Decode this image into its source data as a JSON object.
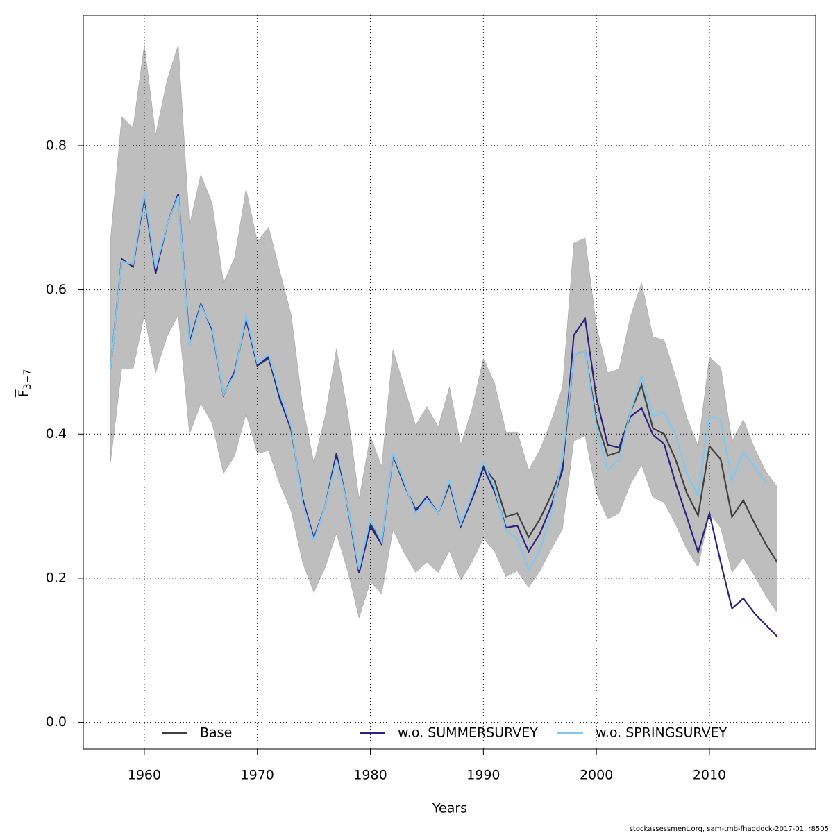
{
  "chart_data": {
    "type": "line",
    "xlabel": "Years",
    "ylabel": {
      "base": "F",
      "subscript": "3−7"
    },
    "footer": "stockassessment.org, sam-tmb-fhaddock-2017-01, r8505",
    "x": [
      1957,
      1958,
      1959,
      1960,
      1961,
      1962,
      1963,
      1964,
      1965,
      1966,
      1967,
      1968,
      1969,
      1970,
      1971,
      1972,
      1973,
      1974,
      1975,
      1976,
      1977,
      1978,
      1979,
      1980,
      1981,
      1982,
      1983,
      1984,
      1985,
      1986,
      1987,
      1988,
      1989,
      1990,
      1991,
      1992,
      1993,
      1994,
      1995,
      1996,
      1997,
      1998,
      1999,
      2000,
      2001,
      2002,
      2003,
      2004,
      2005,
      2006,
      2007,
      2008,
      2009,
      2010,
      2011,
      2012,
      2013,
      2014,
      2015,
      2016
    ],
    "band": {
      "color": "#bebebe",
      "upper": [
        0.67,
        0.84,
        0.825,
        0.94,
        0.815,
        0.89,
        0.94,
        0.69,
        0.76,
        0.72,
        0.61,
        0.645,
        0.74,
        0.667,
        0.687,
        0.625,
        0.565,
        0.44,
        0.36,
        0.425,
        0.518,
        0.43,
        0.31,
        0.397,
        0.355,
        0.517,
        0.465,
        0.412,
        0.438,
        0.41,
        0.465,
        0.385,
        0.435,
        0.505,
        0.47,
        0.403,
        0.403,
        0.35,
        0.378,
        0.418,
        0.465,
        0.665,
        0.672,
        0.55,
        0.485,
        0.49,
        0.562,
        0.61,
        0.535,
        0.53,
        0.48,
        0.423,
        0.383,
        0.507,
        0.493,
        0.39,
        0.42,
        0.38,
        0.348,
        0.327
      ],
      "lower": [
        0.36,
        0.49,
        0.49,
        0.565,
        0.485,
        0.535,
        0.565,
        0.4,
        0.442,
        0.415,
        0.345,
        0.37,
        0.428,
        0.373,
        0.377,
        0.33,
        0.293,
        0.222,
        0.18,
        0.215,
        0.262,
        0.21,
        0.145,
        0.195,
        0.178,
        0.267,
        0.235,
        0.208,
        0.222,
        0.208,
        0.238,
        0.197,
        0.223,
        0.255,
        0.237,
        0.202,
        0.21,
        0.187,
        0.21,
        0.24,
        0.268,
        0.39,
        0.398,
        0.318,
        0.282,
        0.29,
        0.33,
        0.357,
        0.312,
        0.305,
        0.275,
        0.24,
        0.215,
        0.29,
        0.27,
        0.208,
        0.228,
        0.203,
        0.175,
        0.152
      ]
    },
    "series": [
      {
        "name": "Base",
        "color": "#404040",
        "values": [
          0.49,
          0.64,
          0.635,
          0.73,
          0.625,
          0.69,
          0.73,
          0.525,
          0.58,
          0.545,
          0.455,
          0.485,
          0.56,
          0.495,
          0.505,
          0.45,
          0.405,
          0.31,
          0.255,
          0.3,
          0.37,
          0.3,
          0.21,
          0.275,
          0.25,
          0.37,
          0.33,
          0.295,
          0.31,
          0.29,
          0.33,
          0.275,
          0.31,
          0.355,
          0.335,
          0.285,
          0.29,
          0.257,
          0.282,
          0.315,
          0.355,
          0.51,
          0.515,
          0.42,
          0.37,
          0.375,
          0.43,
          0.468,
          0.408,
          0.4,
          0.365,
          0.318,
          0.287,
          0.383,
          0.365,
          0.285,
          0.308,
          0.276,
          0.247,
          0.222
        ]
      },
      {
        "name": "w.o. SUMMERSURVEY",
        "color": "#2b2280",
        "values": [
          0.49,
          0.643,
          0.632,
          0.73,
          0.623,
          0.69,
          0.733,
          0.527,
          0.58,
          0.545,
          0.454,
          0.487,
          0.56,
          0.495,
          0.507,
          0.448,
          0.407,
          0.31,
          0.255,
          0.3,
          0.373,
          0.298,
          0.207,
          0.272,
          0.247,
          0.372,
          0.33,
          0.293,
          0.313,
          0.29,
          0.333,
          0.272,
          0.31,
          0.353,
          0.32,
          0.27,
          0.273,
          0.237,
          0.262,
          0.3,
          0.35,
          0.537,
          0.56,
          0.45,
          0.385,
          0.381,
          0.424,
          0.436,
          0.399,
          0.386,
          0.332,
          0.285,
          0.236,
          0.29,
          0.222,
          0.158,
          0.172,
          0.151,
          0.135,
          0.119
        ]
      },
      {
        "name": "w.o. SPRINGSURVEY",
        "color": "#7fc8f0",
        "values": [
          0.49,
          0.64,
          0.635,
          0.735,
          0.63,
          0.69,
          0.73,
          0.522,
          0.578,
          0.548,
          0.455,
          0.483,
          0.565,
          0.498,
          0.51,
          0.455,
          0.41,
          0.305,
          0.252,
          0.3,
          0.365,
          0.3,
          0.212,
          0.282,
          0.25,
          0.373,
          0.333,
          0.29,
          0.31,
          0.29,
          0.335,
          0.275,
          0.315,
          0.36,
          0.325,
          0.265,
          0.255,
          0.212,
          0.238,
          0.29,
          0.365,
          0.51,
          0.515,
          0.41,
          0.35,
          0.365,
          0.43,
          0.48,
          0.425,
          0.43,
          0.4,
          0.345,
          0.315,
          0.425,
          0.42,
          0.335,
          0.375,
          0.355,
          0.332,
          null
        ]
      }
    ],
    "xlim": [
      1954.6,
      2019.4
    ],
    "ylim": [
      -0.037,
      0.981
    ],
    "xticks": [
      1960,
      1970,
      1980,
      1990,
      2000,
      2010
    ],
    "yticks": [
      {
        "value": 0,
        "label": "0.0"
      },
      0.2,
      0.4,
      0.6,
      0.8
    ],
    "grid": true,
    "legend": "bottom"
  }
}
